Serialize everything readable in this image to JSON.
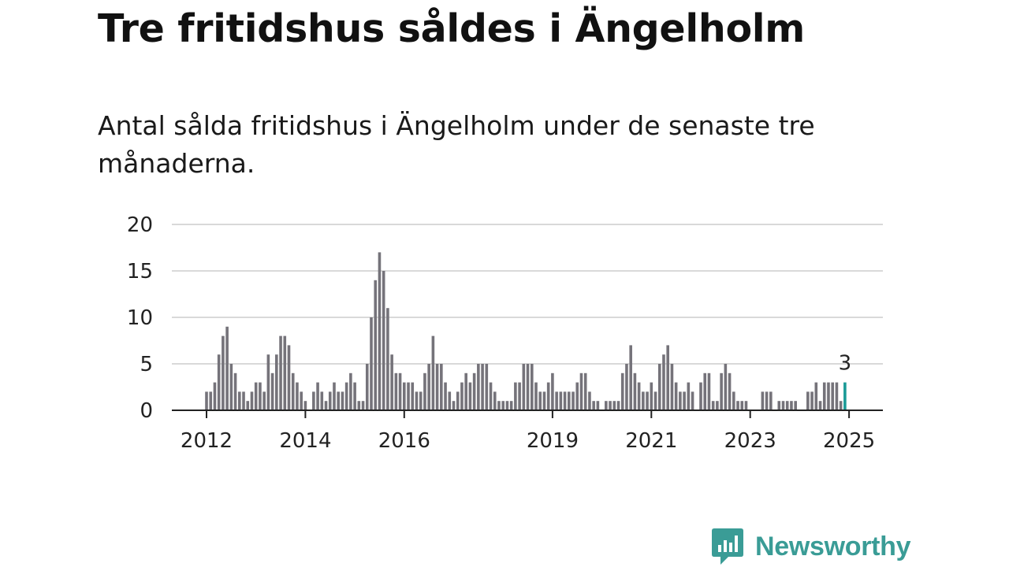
{
  "title": "Tre fritidshus såldes i Ängelholm",
  "subtitle": "Antal sålda fritidshus i Ängelholm under de senaste tre månaderna.",
  "brand": {
    "name": "Newsworthy",
    "color": "#3a9c96",
    "icon": "bar-chart-speech-bubble-icon"
  },
  "chart_data": {
    "type": "bar",
    "title": "",
    "xlabel": "",
    "ylabel": "",
    "ylim": [
      0,
      20
    ],
    "yticks": [
      0,
      5,
      10,
      15,
      20
    ],
    "xtick_labels": [
      "2012",
      "2014",
      "2016",
      "2019",
      "2021",
      "2023",
      "2025"
    ],
    "grid": true,
    "bar_color": "#75737a",
    "highlight_color": "#1a9a96",
    "highlight_label": "3",
    "x_start": "2012-01",
    "x_end": "2025-01",
    "values": [
      2,
      2,
      3,
      6,
      8,
      9,
      5,
      4,
      2,
      2,
      1,
      2,
      3,
      3,
      2,
      6,
      4,
      6,
      8,
      8,
      7,
      4,
      3,
      2,
      1,
      0,
      2,
      3,
      2,
      1,
      2,
      3,
      2,
      2,
      3,
      4,
      3,
      1,
      1,
      5,
      10,
      14,
      17,
      15,
      11,
      6,
      4,
      4,
      3,
      3,
      3,
      2,
      2,
      4,
      5,
      8,
      5,
      5,
      3,
      2,
      1,
      2,
      3,
      4,
      3,
      4,
      5,
      5,
      5,
      3,
      2,
      1,
      1,
      1,
      1,
      3,
      3,
      5,
      5,
      5,
      3,
      2,
      2,
      3,
      4,
      2,
      2,
      2,
      2,
      2,
      3,
      4,
      4,
      2,
      1,
      1,
      0,
      1,
      1,
      1,
      1,
      4,
      5,
      7,
      4,
      3,
      2,
      2,
      3,
      2,
      5,
      6,
      7,
      5,
      3,
      2,
      2,
      3,
      2,
      0,
      3,
      4,
      4,
      1,
      1,
      4,
      5,
      4,
      2,
      1,
      1,
      1,
      0,
      0,
      0,
      2,
      2,
      2,
      0,
      1,
      1,
      1,
      1,
      1,
      0,
      0,
      2,
      2,
      3,
      1,
      3,
      3,
      3,
      3,
      1,
      3
    ]
  }
}
